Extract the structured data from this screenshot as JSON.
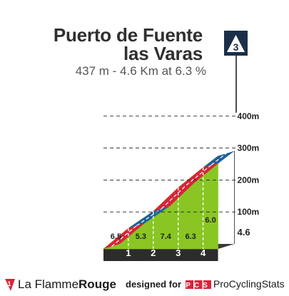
{
  "climb": {
    "title_line1": "Puerto de Fuente",
    "title_line2": "las Varas",
    "subtitle": "437 m - 4.6 Km at 6.3 %",
    "category": "3"
  },
  "chart_data": {
    "type": "area",
    "x_unit": "km",
    "y_unit": "m",
    "points": [
      {
        "km": 0,
        "alt": 0
      },
      {
        "km": 1,
        "alt": 65
      },
      {
        "km": 2,
        "alt": 118
      },
      {
        "km": 3,
        "alt": 192
      },
      {
        "km": 4,
        "alt": 255
      },
      {
        "km": 4.6,
        "alt": 291
      }
    ],
    "segments": [
      {
        "gradient": "6.5",
        "color": "#89c623"
      },
      {
        "gradient": "5.3",
        "color": "#89c623"
      },
      {
        "gradient": "7.4",
        "color": "#89c623"
      },
      {
        "gradient": "6.3",
        "color": "#89c623"
      },
      {
        "gradient": "6.0",
        "color": "#89c623"
      }
    ],
    "km_markers": [
      "1",
      "2",
      "3",
      "4"
    ],
    "distance_end_label": "4.6",
    "altitude_ticks": [
      {
        "value": 100,
        "label": "100m"
      },
      {
        "value": 200,
        "label": "200m"
      },
      {
        "value": 300,
        "label": "300m"
      },
      {
        "value": 400,
        "label": "400m"
      }
    ],
    "top_stripe_colors": [
      "#d8243a",
      "#1d5f9e",
      "#d8243a",
      "#d8243a",
      "#1d5f9e"
    ],
    "colors": {
      "fill": "#89c623",
      "side": "#a39d90",
      "base": "#2c2c2c",
      "grid": "#222222"
    }
  },
  "footer": {
    "brand_part1": "La Flamme",
    "brand_part2": "Rouge",
    "designed_for": "designed for",
    "pcs_logo_text": "PCS",
    "pcs_name": "ProCyclingStats"
  }
}
